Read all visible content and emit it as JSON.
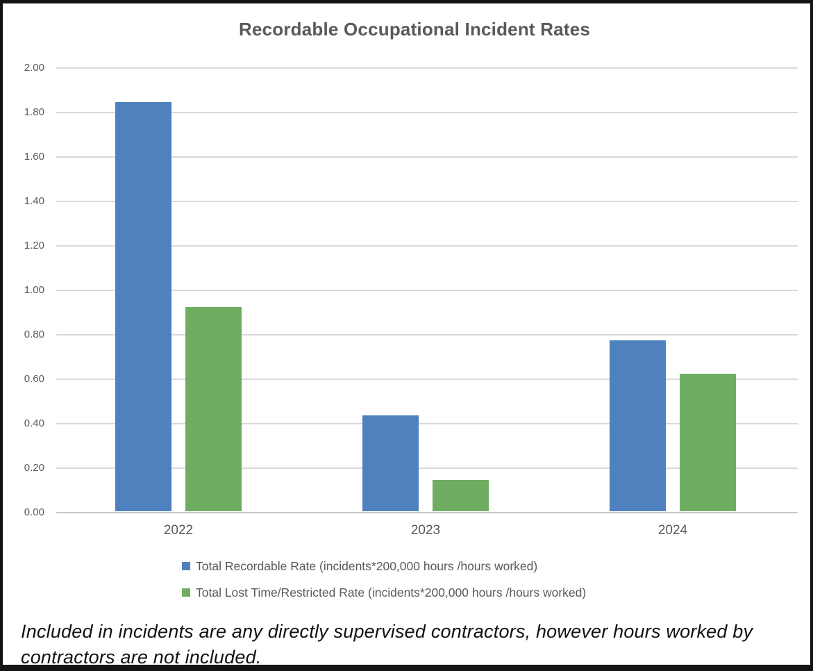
{
  "title": "Recordable Occupational Incident Rates",
  "chart_data": {
    "type": "bar",
    "categories": [
      "2022",
      "2023",
      "2024"
    ],
    "series": [
      {
        "name": "Total Recordable Rate (incidents*200,000 hours /hours worked)",
        "color": "#4E81BD",
        "values": [
          1.84,
          0.43,
          0.77
        ]
      },
      {
        "name": "Total Lost Time/Restricted Rate (incidents*200,000 hours /hours worked)",
        "color": "#6FAE62",
        "values": [
          0.92,
          0.14,
          0.62
        ]
      }
    ],
    "ylim": [
      0,
      2.0
    ],
    "ytick_step": 0.2,
    "ytick_labels": [
      "0.00",
      "0.20",
      "0.40",
      "0.60",
      "0.80",
      "1.00",
      "1.20",
      "1.40",
      "1.60",
      "1.80",
      "2.00"
    ],
    "grid": true,
    "legend_position": "bottom-left",
    "gridline_color": "#D9D9D9",
    "axis_line_color": "#C8C8C8",
    "text_color": "#595959"
  },
  "footnote": "Included in incidents are any directly supervised contractors, however hours worked by contractors are not included."
}
